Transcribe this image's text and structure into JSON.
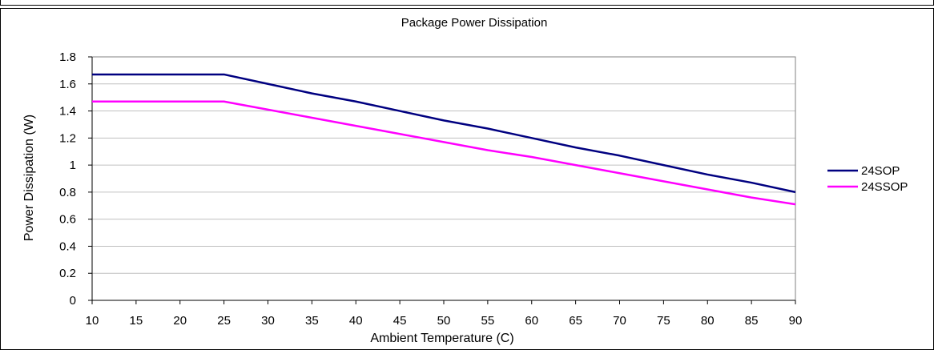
{
  "chart_data": {
    "type": "line",
    "title": "Package Power Dissipation",
    "xlabel": "Ambient Temperature (C)",
    "ylabel": "Power Dissipation (W)",
    "xlim": [
      10,
      90
    ],
    "ylim": [
      0,
      1.8
    ],
    "x_ticks": [
      "10",
      "15",
      "20",
      "25",
      "30",
      "35",
      "40",
      "45",
      "50",
      "55",
      "60",
      "65",
      "70",
      "75",
      "80",
      "85",
      "90"
    ],
    "y_ticks": [
      "0",
      "0.2",
      "0.4",
      "0.6",
      "0.8",
      "1",
      "1.2",
      "1.4",
      "1.6",
      "1.8"
    ],
    "grid": true,
    "legend_position": "right",
    "x": [
      10,
      15,
      20,
      25,
      30,
      35,
      40,
      45,
      50,
      55,
      60,
      65,
      70,
      75,
      80,
      85,
      90
    ],
    "series": [
      {
        "name": "24SOP",
        "color": "#000080",
        "values": [
          1.67,
          1.67,
          1.67,
          1.67,
          1.6,
          1.53,
          1.47,
          1.4,
          1.33,
          1.27,
          1.2,
          1.13,
          1.07,
          1.0,
          0.93,
          0.87,
          0.8
        ]
      },
      {
        "name": "24SSOP",
        "color": "#ff00ff",
        "values": [
          1.47,
          1.47,
          1.47,
          1.47,
          1.41,
          1.35,
          1.29,
          1.23,
          1.17,
          1.11,
          1.06,
          1.0,
          0.94,
          0.88,
          0.82,
          0.76,
          0.71
        ]
      }
    ]
  }
}
